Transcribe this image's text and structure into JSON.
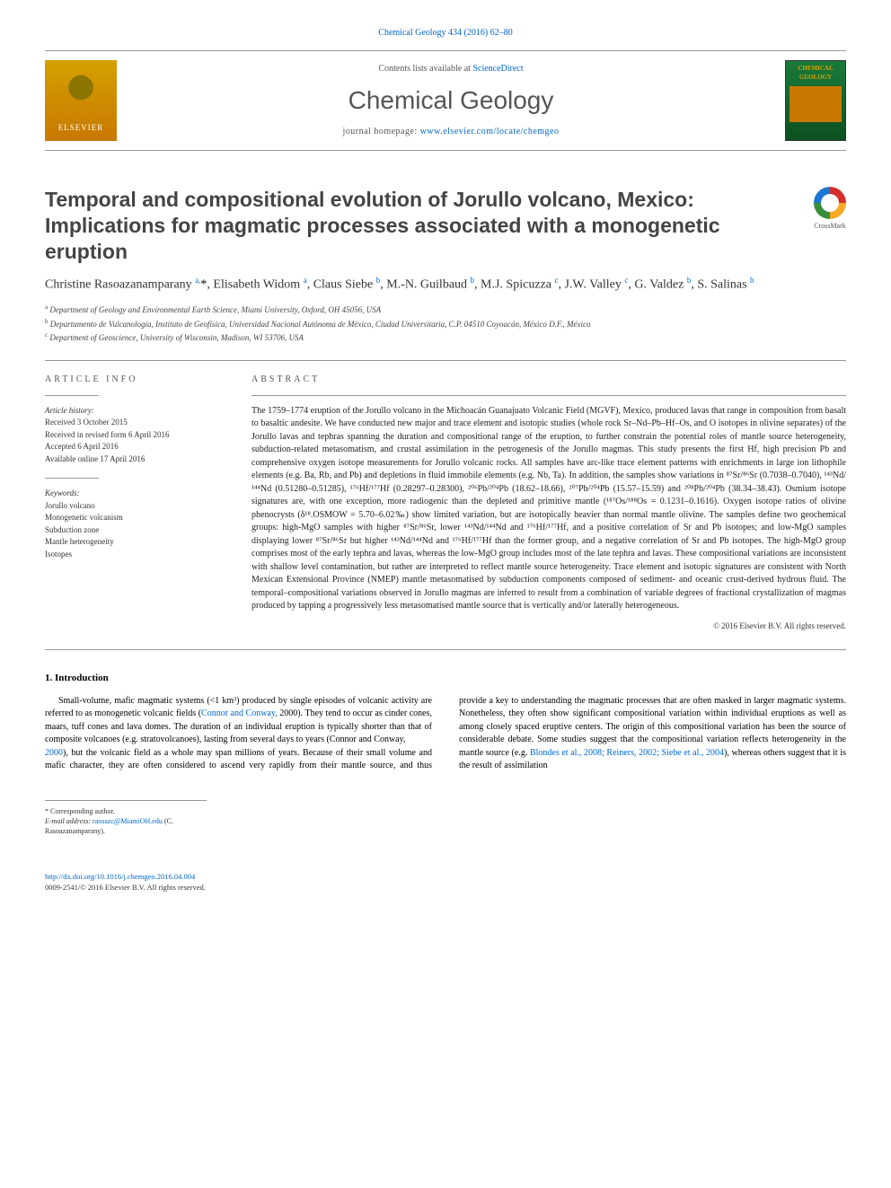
{
  "header": {
    "citation_link": "Chemical Geology 434 (2016) 62–80",
    "contents_line_prefix": "Contents lists available at ",
    "contents_link": "ScienceDirect",
    "journal_name": "Chemical Geology",
    "homepage_prefix": "journal homepage: ",
    "homepage_link": "www.elsevier.com/locate/chemgeo",
    "publisher_logo_text": "ELSEVIER",
    "cover_label": "CHEMICAL GEOLOGY",
    "crossmark_label": "CrossMark"
  },
  "article": {
    "title": "Temporal and compositional evolution of Jorullo volcano, Mexico: Implications for magmatic processes associated with a monogenetic eruption",
    "authors_html": "Christine Rasoazanamparany <sup>a,</sup><span class='star'>*</span>, Elisabeth Widom <sup>a</sup>, Claus Siebe <sup>b</sup>, M.-N. Guilbaud <sup>b</sup>, M.J. Spicuzza <sup>c</sup>, J.W. Valley <sup>c</sup>, G. Valdez <sup>b</sup>, S. Salinas <sup>b</sup>",
    "affiliations": [
      {
        "sup": "a",
        "text": "Department of Geology and Environmental Earth Science, Miami University, Oxford, OH 45056, USA"
      },
      {
        "sup": "b",
        "text": "Departamento de Vulcanología, Instituto de Geofísica, Universidad Nacional Autónoma de México, Ciudad Universitaria, C.P. 04510 Coyoacán, México D.F., México"
      },
      {
        "sup": "c",
        "text": "Department of Geoscience, University of Wisconsin, Madison, WI 53706, USA"
      }
    ]
  },
  "article_info": {
    "heading": "article info",
    "history_label": "Article history:",
    "history": [
      "Received 3 October 2015",
      "Received in revised form 6 April 2016",
      "Accepted 6 April 2016",
      "Available online 17 April 2016"
    ],
    "keywords_label": "Keywords:",
    "keywords": [
      "Jorullo volcano",
      "Monogenetic volcanism",
      "Subduction zone",
      "Mantle heterogeneity",
      "Isotopes"
    ]
  },
  "abstract": {
    "heading": "abstract",
    "text": "The 1759–1774 eruption of the Jorullo volcano in the Michoacán Guanajuato Volcanic Field (MGVF), Mexico, produced lavas that range in composition from basalt to basaltic andesite. We have conducted new major and trace element and isotopic studies (whole rock Sr–Nd–Pb–Hf–Os, and O isotopes in olivine separates) of the Jorullo lavas and tephras spanning the duration and compositional range of the eruption, to further constrain the potential roles of mantle source heterogeneity, subduction-related metasomatism, and crustal assimilation in the petrogenesis of the Jorullo magmas. This study presents the first Hf, high precision Pb and comprehensive oxygen isotope measurements for Jorullo volcanic rocks. All samples have arc-like trace element patterns with enrichments in large ion lithophile elements (e.g. Ba, Rb, and Pb) and depletions in fluid immobile elements (e.g. Nb, Ta). In addition, the samples show variations in ⁸⁷Sr/⁸⁶Sr (0.7038–0.7040), ¹⁴³Nd/¹⁴⁴Nd (0.51280–0.51285), ¹⁷⁶Hf/¹⁷⁷Hf (0.28297–0.28300), ²⁰⁶Pb/²⁰⁴Pb (18.62–18.66), ²⁰⁷Pb/²⁰⁴Pb (15.57–15.59) and ²⁰⁸Pb/²⁰⁴Pb (38.34–38.43). Osmium isotope signatures are, with one exception, more radiogenic than the depleted and primitive mantle (¹⁸⁷Os/¹⁸⁸Os = 0.1231–0.1616). Oxygen isotope ratios of olivine phenocrysts (δ¹⁸.OSMOW = 5.70–6.02‰) show limited variation, but are isotopically heavier than normal mantle olivine. The samples define two geochemical groups: high-MgO samples with higher ⁸⁷Sr/⁸⁶Sr, lower ¹⁴³Nd/¹⁴⁴Nd and ¹⁷⁶Hf/¹⁷⁷Hf, and a positive correlation of Sr and Pb isotopes; and low-MgO samples displaying lower ⁸⁷Sr/⁸⁶Sr but higher ¹⁴³Nd/¹⁴⁴Nd and ¹⁷⁶Hf/¹⁷⁷Hf than the former group, and a negative correlation of Sr and Pb isotopes. The high-MgO group comprises most of the early tephra and lavas, whereas the low-MgO group includes most of the late tephra and lavas. These compositional variations are inconsistent with shallow level contamination, but rather are interpreted to reflect mantle source heterogeneity. Trace element and isotopic signatures are consistent with North Mexican Extensional Province (NMEP) mantle metasomatised by subduction components composed of sediment- and oceanic crust-derived hydrous fluid. The temporal–compositional variations observed in Jorullo magmas are inferred to result from a combination of variable degrees of fractional crystallization of magmas produced by tapping a progressively less metasomatised mantle source that is vertically and/or laterally heterogeneous.",
    "copyright": "© 2016 Elsevier B.V. All rights reserved."
  },
  "intro": {
    "heading": "1. Introduction",
    "para1": "Small-volume, mafic magmatic systems (<1 km³) produced by single episodes of volcanic activity are referred to as monogenetic volcanic fields (Connor and Conway, 2000). They tend to occur as cinder cones, maars, tuff cones and lava domes. The duration of an individual eruption is typically shorter than that of composite volcanoes (e.g. stratovolcanoes), lasting from several days to years (Connor and Conway,",
    "para2": "2000), but the volcanic field as a whole may span millions of years. Because of their small volume and mafic character, they are often considered to ascend very rapidly from their mantle source, and thus provide a key to understanding the magmatic processes that are often masked in larger magmatic systems. Nonetheless, they often show significant compositional variation within individual eruptions as well as among closely spaced eruptive centers. The origin of this compositional variation has been the source of considerable debate. Some studies suggest that the compositional variation reflects heterogeneity in the mantle source (e.g. Blondes et al., 2008; Reiners, 2002; Siebe et al., 2004), whereas others suggest that it is the result of assimilation"
  },
  "footnote": {
    "corr_label": "* Corresponding author.",
    "email_label": "E-mail address: ",
    "email": "rasoazc@MiamiOH.edu",
    "email_suffix": " (C. Rasoazanamparany)."
  },
  "doi": {
    "url": "http://dx.doi.org/10.1016/j.chemgeo.2016.04.004",
    "issn_line": "0009-2541/© 2016 Elsevier B.V. All rights reserved."
  },
  "colors": {
    "link": "#0066cc",
    "text": "#222222",
    "muted": "#555555",
    "border": "#999999",
    "elsevier_orange": "#c87800",
    "cover_green": "#1a7a3a"
  }
}
